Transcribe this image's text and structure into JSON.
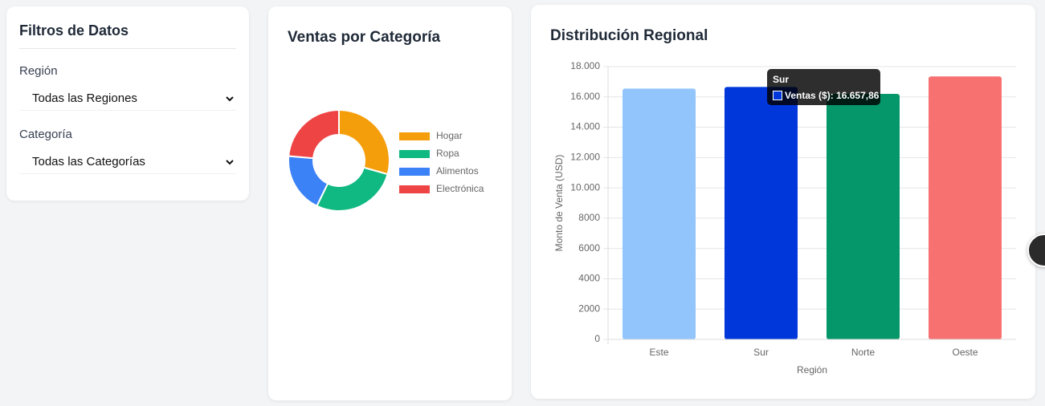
{
  "filters": {
    "title": "Filtros de Datos",
    "fields": [
      {
        "label": "Región",
        "selected": "Todas las Regiones"
      },
      {
        "label": "Categoría",
        "selected": "Todas las Categorías"
      }
    ]
  },
  "chart_data": [
    {
      "type": "pie",
      "title": "Ventas por Categoría",
      "categories": [
        "Hogar",
        "Ropa",
        "Alimentos",
        "Electrónica"
      ],
      "values": [
        29.4,
        27.8,
        19.2,
        23.6
      ],
      "colors": [
        "#f59e0b",
        "#10b981",
        "#3b82f6",
        "#ef4444"
      ],
      "donut": true
    },
    {
      "type": "bar",
      "title": "Distribución Regional",
      "categories": [
        "Este",
        "Sur",
        "Norte",
        "Oeste"
      ],
      "series": [
        {
          "name": "Ventas ($)",
          "values": [
            16550,
            16657.86,
            16200,
            17350
          ],
          "value_labels": [
            null,
            "16.657,86",
            null,
            null
          ],
          "colors": [
            "#93c5fd",
            "#0037db",
            "#059669",
            "#f87171"
          ]
        }
      ],
      "ylim": [
        0,
        18000
      ],
      "yticks": [
        0,
        2000,
        4000,
        6000,
        8000,
        {
          "value": 10000,
          "label": "10.000"
        },
        {
          "value": 12000,
          "label": "12.000"
        },
        {
          "value": 14000,
          "label": "14.000"
        },
        {
          "value": 16000,
          "label": "16.000"
        },
        {
          "value": 18000,
          "label": "18.000"
        }
      ],
      "ylabel": "Monto de Venta (USD)",
      "xlabel": "Región",
      "grid": true,
      "tooltip_index": 1
    }
  ]
}
